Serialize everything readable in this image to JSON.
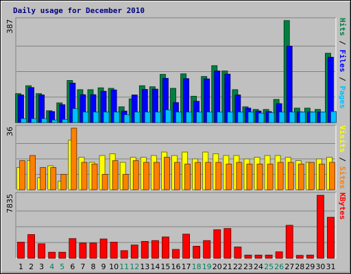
{
  "chart_data": [
    {
      "type": "bar",
      "title": "Daily usage for December 2010",
      "categories": [
        "1",
        "2",
        "3",
        "4",
        "5",
        "6",
        "7",
        "8",
        "9",
        "10",
        "11",
        "12",
        "13",
        "14",
        "15",
        "16",
        "17",
        "18",
        "19",
        "20",
        "21",
        "22",
        "23",
        "24",
        "25",
        "26",
        "27",
        "28",
        "29",
        "30",
        "31"
      ],
      "weekend_days": [
        "4",
        "5",
        "11",
        "12",
        "18",
        "19",
        "25",
        "26"
      ],
      "ylim": [
        0,
        387
      ],
      "y_max_label": "387",
      "legend": [
        {
          "label": "Pages",
          "color": "#00c0ff"
        },
        {
          "label": "Files",
          "color": "#0000ff"
        },
        {
          "label": "Hits",
          "color": "#008040"
        }
      ],
      "separator": "/",
      "series": [
        {
          "name": "Hits",
          "color": "#008040",
          "values": [
            110,
            140,
            110,
            45,
            75,
            160,
            125,
            125,
            132,
            130,
            60,
            90,
            140,
            136,
            183,
            130,
            185,
            100,
            175,
            216,
            196,
            125,
            60,
            50,
            50,
            88,
            387,
            55,
            55,
            50,
            263
          ]
        },
        {
          "name": "Files",
          "color": "#0000ff",
          "values": [
            105,
            133,
            105,
            42,
            68,
            150,
            106,
            106,
            119,
            124,
            44,
            105,
            126,
            127,
            168,
            76,
            167,
            81,
            166,
            196,
            184,
            105,
            55,
            44,
            42,
            72,
            290,
            41,
            41,
            40,
            248
          ]
        },
        {
          "name": "Pages",
          "color": "#00c0ff",
          "values": [
            15,
            15,
            15,
            10,
            12,
            53,
            40,
            40,
            40,
            40,
            30,
            40,
            40,
            40,
            48,
            40,
            40,
            40,
            40,
            40,
            40,
            40,
            40,
            36,
            38,
            40,
            40,
            40,
            40,
            40,
            42
          ]
        }
      ]
    },
    {
      "type": "bar",
      "categories": [
        "1",
        "2",
        "3",
        "4",
        "5",
        "6",
        "7",
        "8",
        "9",
        "10",
        "11",
        "12",
        "13",
        "14",
        "15",
        "16",
        "17",
        "18",
        "19",
        "20",
        "21",
        "22",
        "23",
        "24",
        "25",
        "26",
        "27",
        "28",
        "29",
        "30",
        "31"
      ],
      "ylim": [
        0,
        36
      ],
      "y_max_label": "36",
      "legend": [
        {
          "label": "Sites",
          "color": "#ff8000"
        },
        {
          "label": "Visits",
          "color": "#ffff00"
        }
      ],
      "separator": "/",
      "series": [
        {
          "name": "Visits",
          "color": "#ffff00",
          "values": [
            13,
            17,
            7,
            14,
            5,
            29,
            19,
            16,
            20,
            21,
            16,
            19,
            19,
            20,
            22,
            20,
            22,
            18,
            22,
            21,
            20,
            20,
            18,
            19,
            20,
            20,
            19,
            17,
            16,
            18,
            19
          ]
        },
        {
          "name": "Sites",
          "color": "#ff8000",
          "values": [
            17,
            20,
            13,
            13,
            9,
            36,
            16,
            15,
            9,
            17,
            9,
            17,
            16,
            16,
            19,
            16,
            15,
            16,
            16,
            16,
            15,
            16,
            15,
            15,
            15,
            16,
            16,
            15,
            16,
            15,
            16
          ]
        }
      ]
    },
    {
      "type": "bar",
      "categories": [
        "1",
        "2",
        "3",
        "4",
        "5",
        "6",
        "7",
        "8",
        "9",
        "10",
        "11",
        "12",
        "13",
        "14",
        "15",
        "16",
        "17",
        "18",
        "19",
        "20",
        "21",
        "22",
        "23",
        "24",
        "25",
        "26",
        "27",
        "28",
        "29",
        "30",
        "31"
      ],
      "ylim": [
        0,
        7835
      ],
      "y_max_label": "7835",
      "legend": [
        {
          "label": "KBytes",
          "color": "#ff0000"
        }
      ],
      "series": [
        {
          "name": "KBytes",
          "color": "#ff0000",
          "values": [
            2000,
            2950,
            1800,
            750,
            750,
            2450,
            1900,
            1900,
            2400,
            2000,
            950,
            1650,
            2100,
            2200,
            2650,
            1100,
            3000,
            1500,
            2200,
            3550,
            3700,
            1400,
            400,
            400,
            400,
            800,
            4100,
            360,
            400,
            7835,
            5100
          ]
        }
      ]
    }
  ]
}
